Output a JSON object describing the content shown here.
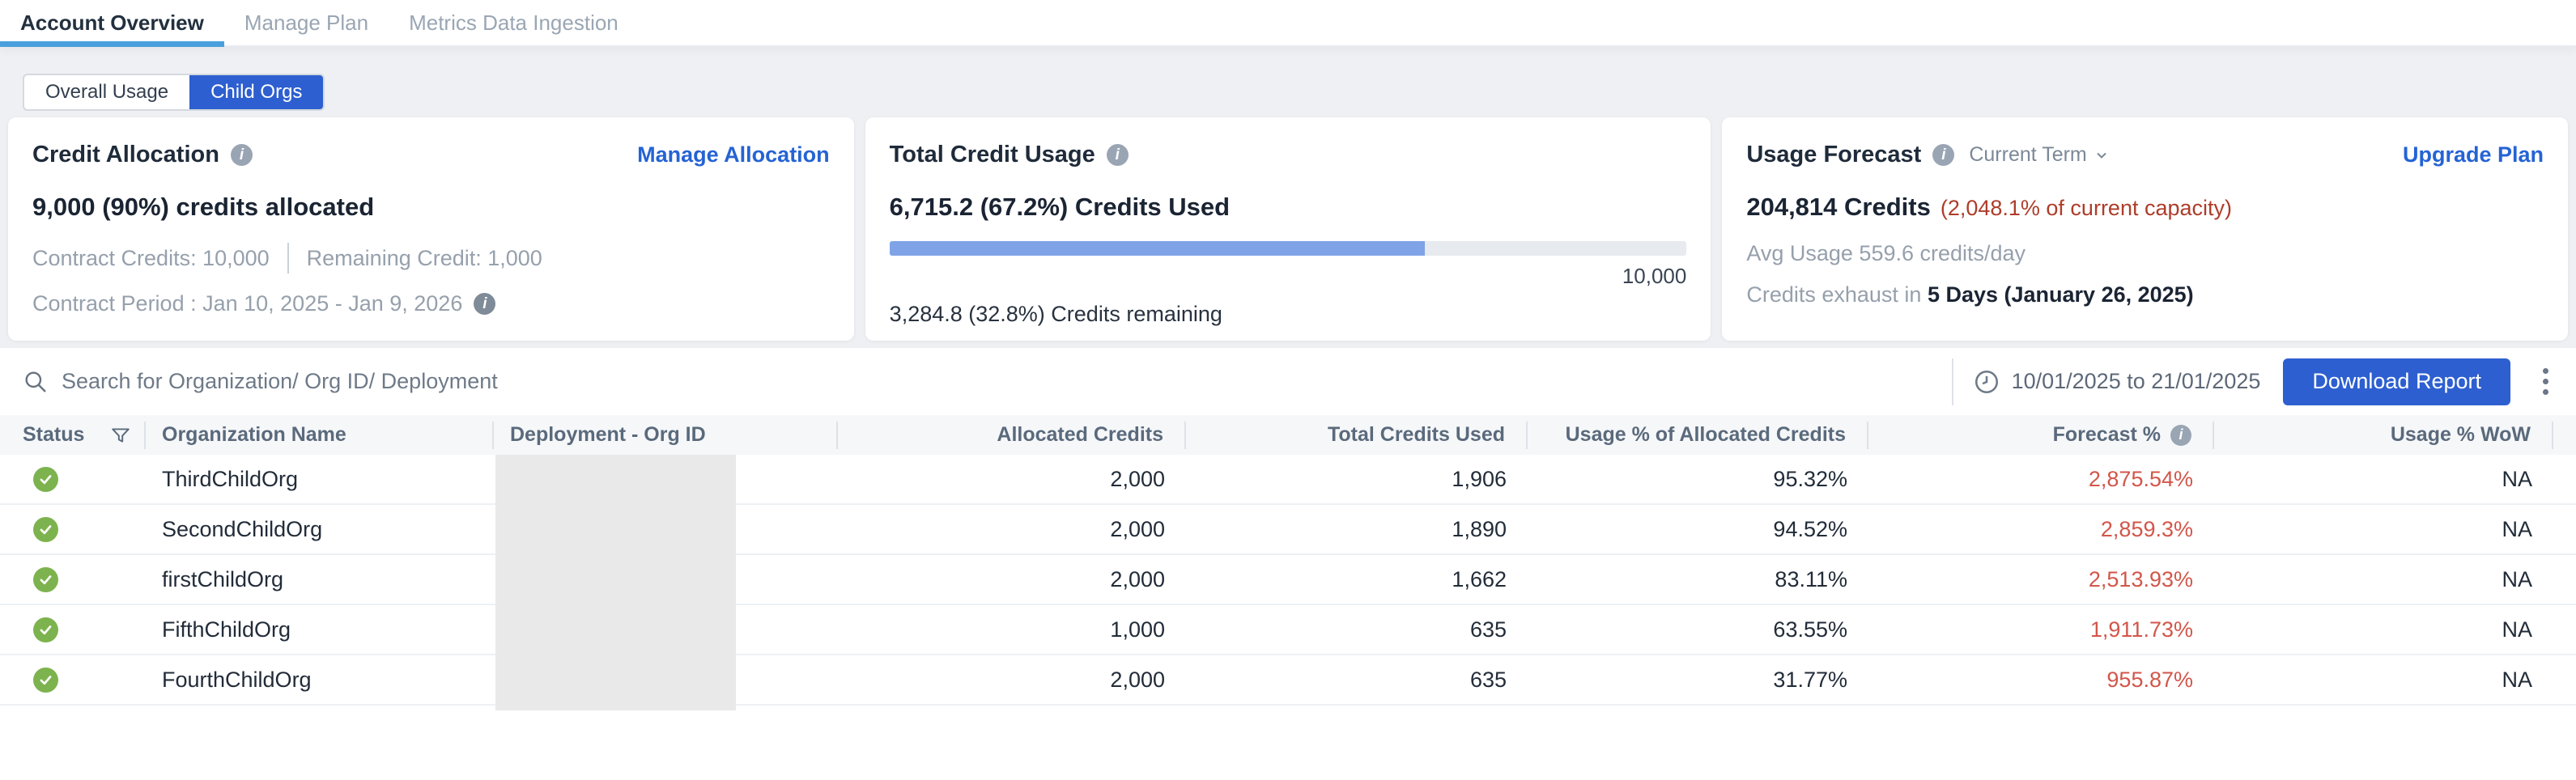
{
  "tabs": [
    {
      "label": "Account Overview",
      "active": true
    },
    {
      "label": "Manage Plan",
      "active": false
    },
    {
      "label": "Metrics Data Ingestion",
      "active": false
    }
  ],
  "view_toggle": {
    "options": [
      "Overall Usage",
      "Child Orgs"
    ],
    "selected": "Child Orgs"
  },
  "cards": {
    "credit_allocation": {
      "title": "Credit Allocation",
      "action_link": "Manage Allocation",
      "headline": "9,000 (90%) credits allocated",
      "contract_credits": "Contract Credits: 10,000",
      "remaining_credit": "Remaining Credit: 1,000",
      "contract_period": "Contract Period : Jan 10, 2025 - Jan 9, 2026"
    },
    "total_credit_usage": {
      "title": "Total Credit Usage",
      "used_line": "6,715.2 (67.2%) Credits Used",
      "used_percent": 67.2,
      "capacity_label": "10,000",
      "remaining_line": "3,284.8 (32.8%) Credits remaining"
    },
    "usage_forecast": {
      "title": "Usage Forecast",
      "term_selector": "Current Term",
      "action_link": "Upgrade Plan",
      "credits": "204,814 Credits",
      "capacity_note": "(2,048.1% of current capacity)",
      "avg_usage": "Avg Usage 559.6 credits/day",
      "exhaust_prefix": "Credits exhaust in ",
      "exhaust_value": "5 Days (January 26, 2025)"
    }
  },
  "toolbar": {
    "search_placeholder": "Search for Organization/ Org ID/ Deployment",
    "date_range": "10/01/2025 to 21/01/2025",
    "download_label": "Download Report"
  },
  "table": {
    "columns": [
      "Status",
      "Organization Name",
      "Deployment - Org ID",
      "Allocated Credits",
      "Total Credits Used",
      "Usage % of Allocated Credits",
      "Forecast %",
      "Usage % WoW"
    ],
    "rows": [
      {
        "status": "active",
        "organization": "ThirdChildOrg",
        "allocated": "2,000",
        "total_used": "1,906",
        "usage_pct": "95.32%",
        "forecast_pct": "2,875.54%",
        "usage_wow": "NA"
      },
      {
        "status": "active",
        "organization": "SecondChildOrg",
        "allocated": "2,000",
        "total_used": "1,890",
        "usage_pct": "94.52%",
        "forecast_pct": "2,859.3%",
        "usage_wow": "NA"
      },
      {
        "status": "active",
        "organization": "firstChildOrg",
        "allocated": "2,000",
        "total_used": "1,662",
        "usage_pct": "83.11%",
        "forecast_pct": "2,513.93%",
        "usage_wow": "NA"
      },
      {
        "status": "active",
        "organization": "FifthChildOrg",
        "allocated": "1,000",
        "total_used": "635",
        "usage_pct": "63.55%",
        "forecast_pct": "1,911.73%",
        "usage_wow": "NA"
      },
      {
        "status": "active",
        "organization": "FourthChildOrg",
        "allocated": "2,000",
        "total_used": "635",
        "usage_pct": "31.77%",
        "forecast_pct": "955.87%",
        "usage_wow": "NA"
      }
    ]
  },
  "colors": {
    "accent_blue": "#2d5fd0",
    "link_blue": "#2563d4",
    "tab_underline_blue": "#4aa0dc",
    "progress_fill_blue": "#7fa3e6",
    "card_alert_red": "#ad3d2a",
    "table_forecast_red": "#d2564a",
    "status_green": "#7db34e"
  }
}
